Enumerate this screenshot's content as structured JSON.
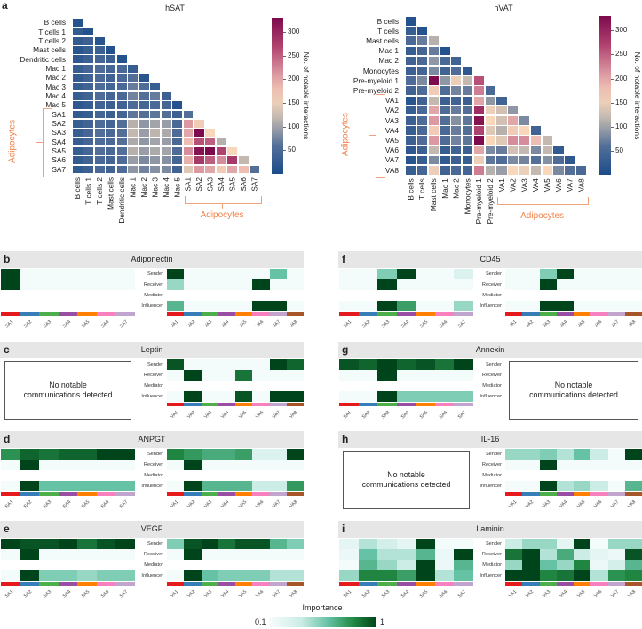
{
  "panel_a_label": "a",
  "adipocytes_label": "Adipocytes",
  "colorbar_title": "No. of notable interactions",
  "chart_data": [
    {
      "type": "heatmap",
      "title": "hSAT",
      "colorbar_label": "No. of notable interactions",
      "colorbar_ticks": [
        50,
        100,
        150,
        200,
        250,
        300
      ],
      "zlim": [
        0,
        330
      ],
      "labels": [
        "B cells",
        "T cells 1",
        "T cells 2",
        "Mast cells",
        "Dendritic cells",
        "Mac 1",
        "Mac 2",
        "Mac 3",
        "Mac 4",
        "Mac 5",
        "SA1",
        "SA2",
        "SA3",
        "SA4",
        "SA5",
        "SA6",
        "SA7"
      ],
      "group_label": "Adipocytes",
      "values": [
        [
          10
        ],
        [
          25,
          10
        ],
        [
          25,
          35,
          15
        ],
        [
          15,
          30,
          35,
          10
        ],
        [
          20,
          35,
          45,
          35,
          10
        ],
        [
          30,
          45,
          55,
          45,
          50,
          30
        ],
        [
          25,
          40,
          50,
          40,
          50,
          60,
          15
        ],
        [
          30,
          40,
          55,
          45,
          50,
          70,
          55,
          30
        ],
        [
          30,
          40,
          55,
          45,
          50,
          75,
          60,
          70,
          35
        ],
        [
          20,
          30,
          40,
          35,
          40,
          55,
          45,
          50,
          45,
          10
        ],
        [
          25,
          30,
          45,
          35,
          45,
          65,
          60,
          65,
          60,
          35,
          60
        ],
        [
          30,
          40,
          55,
          45,
          60,
          110,
          90,
          100,
          95,
          50,
          210,
          170
        ],
        [
          30,
          45,
          60,
          50,
          60,
          120,
          95,
          115,
          105,
          55,
          200,
          330,
          160
        ],
        [
          30,
          45,
          55,
          50,
          60,
          105,
          90,
          100,
          95,
          50,
          180,
          260,
          250,
          110
        ],
        [
          30,
          45,
          60,
          50,
          60,
          110,
          95,
          105,
          100,
          55,
          220,
          320,
          330,
          270,
          160
        ],
        [
          25,
          40,
          50,
          45,
          55,
          95,
          80,
          90,
          85,
          45,
          190,
          280,
          250,
          220,
          280,
          120
        ],
        [
          25,
          35,
          50,
          40,
          55,
          90,
          75,
          85,
          80,
          40,
          140,
          210,
          200,
          170,
          200,
          180,
          60
        ]
      ]
    },
    {
      "type": "heatmap",
      "title": "hVAT",
      "colorbar_label": "No. of notable interactions",
      "colorbar_ticks": [
        50,
        100,
        150,
        200,
        250,
        300
      ],
      "zlim": [
        0,
        330
      ],
      "labels": [
        "B cells",
        "T cells",
        "Mast cells",
        "Mac 1",
        "Mac 2",
        "Monocytes",
        "Pre-myeloid 1",
        "Pre-myeloid 2",
        "VA1",
        "VA2",
        "VA3",
        "VA4",
        "VA5",
        "VA6",
        "VA7",
        "VA8"
      ],
      "group_label": "Adipocytes",
      "values": [
        [
          10
        ],
        [
          30,
          10
        ],
        [
          50,
          70,
          110
        ],
        [
          30,
          45,
          70,
          10
        ],
        [
          40,
          50,
          90,
          50,
          40
        ],
        [
          35,
          45,
          80,
          40,
          55,
          20
        ],
        [
          55,
          80,
          330,
          90,
          150,
          120,
          260
        ],
        [
          40,
          55,
          170,
          55,
          75,
          70,
          230,
          50
        ],
        [
          15,
          40,
          120,
          35,
          40,
          35,
          200,
          90,
          40
        ],
        [
          30,
          50,
          200,
          55,
          70,
          60,
          290,
          150,
          130,
          90
        ],
        [
          35,
          55,
          210,
          60,
          85,
          65,
          320,
          160,
          130,
          200,
          80
        ],
        [
          30,
          50,
          170,
          50,
          70,
          60,
          270,
          140,
          110,
          170,
          160,
          40
        ],
        [
          35,
          55,
          210,
          55,
          75,
          65,
          330,
          160,
          140,
          220,
          220,
          180,
          120
        ],
        [
          20,
          35,
          120,
          30,
          40,
          35,
          200,
          80,
          70,
          130,
          120,
          80,
          120,
          25
        ],
        [
          15,
          30,
          80,
          25,
          35,
          30,
          150,
          65,
          55,
          80,
          75,
          60,
          85,
          55,
          20
        ],
        [
          30,
          45,
          150,
          40,
          50,
          45,
          230,
          110,
          95,
          160,
          150,
          120,
          160,
          80,
          60,
          50
        ]
      ]
    }
  ],
  "roles": [
    "Sender",
    "Receiver",
    "Mediator",
    "Influencer"
  ],
  "sa_labels": [
    "SA1",
    "SA2",
    "SA3",
    "SA4",
    "SA5",
    "SA6",
    "SA7"
  ],
  "va_labels": [
    "VA1",
    "VA2",
    "VA3",
    "VA4",
    "VA5",
    "VA6",
    "VA7",
    "VA8"
  ],
  "cell_colors": [
    "#e41a1c",
    "#377eb8",
    "#4daf4a",
    "#984ea3",
    "#ff7f00",
    "#f781bf",
    "#c2a5cf",
    "#a65628"
  ],
  "no_comm_text": "No notable communications detected",
  "importance_legend": {
    "title": "Importance",
    "min_label": "0.1",
    "max_label": "1"
  },
  "panels": [
    {
      "letter": "b",
      "title": "Adiponectin",
      "column": "left",
      "sa": [
        [
          1,
          0.1,
          0.1,
          0.1,
          0.1,
          0.1,
          0.1
        ],
        [
          1,
          0.1,
          0.1,
          0.1,
          0.1,
          0.1,
          0.1
        ],
        null,
        null
      ],
      "va": [
        [
          1,
          0.1,
          0.1,
          0.1,
          0.1,
          0.1,
          0.55,
          0.1
        ],
        [
          0.45,
          0.1,
          0.1,
          0.1,
          0.1,
          1,
          0.1,
          0.1
        ],
        null,
        [
          0.6,
          0.1,
          0.1,
          0.1,
          0.1,
          1,
          1,
          0.1
        ]
      ]
    },
    {
      "letter": "c",
      "title": "Leptin",
      "column": "left",
      "sa": null,
      "va": [
        [
          0.95,
          0.1,
          0.1,
          0.1,
          0.1,
          0.1,
          1,
          0.9
        ],
        [
          0.1,
          1,
          0.1,
          0.1,
          0.85,
          0.1,
          0.1,
          0.1
        ],
        null,
        [
          0.1,
          1,
          0.1,
          0.1,
          0.95,
          0.1,
          1,
          1
        ]
      ]
    },
    {
      "letter": "d",
      "title": "ANPGT",
      "column": "left",
      "sa": [
        [
          0.75,
          0.9,
          0.85,
          0.9,
          0.9,
          1,
          1
        ],
        [
          0.1,
          1,
          0.1,
          0.1,
          0.1,
          0.1,
          0.1
        ],
        null,
        [
          0.1,
          1,
          0.55,
          0.55,
          0.55,
          0.55,
          0.55
        ]
      ],
      "va": [
        [
          0.8,
          0.72,
          0.65,
          0.65,
          0.7,
          0.25,
          0.25,
          1
        ],
        [
          0.1,
          1,
          0.1,
          0.1,
          0.1,
          0.1,
          0.1,
          0.1
        ],
        null,
        [
          0.1,
          1,
          0.6,
          0.6,
          0.6,
          0.35,
          0.35,
          0.72
        ]
      ]
    },
    {
      "letter": "e",
      "title": "VEGF",
      "column": "left",
      "sa": [
        [
          1,
          0.95,
          0.95,
          1,
          0.85,
          0.95,
          1
        ],
        [
          0.1,
          1,
          0.1,
          0.1,
          0.1,
          0.1,
          0.1
        ],
        null,
        [
          0.1,
          1,
          0.5,
          0.5,
          0.45,
          0.5,
          0.5
        ]
      ],
      "va": [
        [
          0.5,
          0.95,
          1,
          0.85,
          0.95,
          0.95,
          0.6,
          0.5
        ],
        [
          0.1,
          1,
          0.1,
          0.1,
          0.1,
          0.1,
          0.1,
          0.1
        ],
        null,
        [
          0.1,
          1,
          0.55,
          0.5,
          0.5,
          0.5,
          0.4,
          0.4
        ]
      ]
    },
    {
      "letter": "f",
      "title": "CD45",
      "column": "right",
      "sa": [
        [
          0.1,
          0.1,
          0.5,
          1,
          0.1,
          0.1,
          0.25
        ],
        [
          0.1,
          0.1,
          1,
          0.1,
          0.1,
          0.1,
          0.1
        ],
        null,
        [
          0.1,
          0.1,
          1,
          0.7,
          0.1,
          0.1,
          0.45
        ]
      ],
      "va": [
        [
          0.1,
          0.1,
          0.5,
          1,
          0.1,
          0.1,
          0.1,
          0.1
        ],
        [
          0.1,
          0.1,
          1,
          0.1,
          0.1,
          0.1,
          0.1,
          0.1
        ],
        null,
        [
          0.1,
          0.1,
          1,
          1,
          0.1,
          0.1,
          0.1,
          0.1
        ]
      ]
    },
    {
      "letter": "g",
      "title": "Annexin",
      "column": "right",
      "sa": [
        [
          0.95,
          0.9,
          1,
          0.9,
          0.95,
          0.85,
          1
        ],
        [
          0.1,
          0.1,
          1,
          0.1,
          0.1,
          0.1,
          0.1
        ],
        null,
        [
          0.1,
          0.1,
          1,
          0.5,
          0.5,
          0.5,
          0.5
        ]
      ],
      "va": null
    },
    {
      "letter": "h",
      "title": "IL-16",
      "column": "right",
      "sa": null,
      "va": [
        [
          0.45,
          0.45,
          0.5,
          0.4,
          0.55,
          0.35,
          0.1,
          1
        ],
        [
          0.1,
          0.1,
          1,
          0.1,
          0.1,
          0.1,
          0.1,
          0.1
        ],
        null,
        [
          0.1,
          0.1,
          1,
          0.4,
          0.45,
          0.35,
          0.1,
          0.6
        ]
      ]
    },
    {
      "letter": "i",
      "title": "Laminin",
      "column": "right",
      "sa": [
        [
          0.2,
          0.4,
          0.3,
          0.2,
          1,
          0.1,
          0.1
        ],
        [
          0.15,
          0.55,
          0.4,
          0.4,
          0.6,
          0.15,
          1
        ],
        [
          0.1,
          0.6,
          0.45,
          0.35,
          1,
          0.15,
          0.6
        ],
        [
          0.45,
          0.8,
          0.8,
          0.7,
          1,
          0.4,
          0.55
        ]
      ],
      "va": [
        [
          0.35,
          0.45,
          0.45,
          0.2,
          1,
          0.1,
          0.45,
          0.45
        ],
        [
          0.85,
          1,
          0.4,
          0.65,
          0.35,
          0.2,
          0.15,
          0.95
        ],
        [
          0.45,
          1,
          0.55,
          0.45,
          0.8,
          0.15,
          0.3,
          0.6
        ],
        [
          1,
          1,
          0.8,
          0.85,
          1,
          0.4,
          0.75,
          0.8
        ]
      ]
    }
  ]
}
